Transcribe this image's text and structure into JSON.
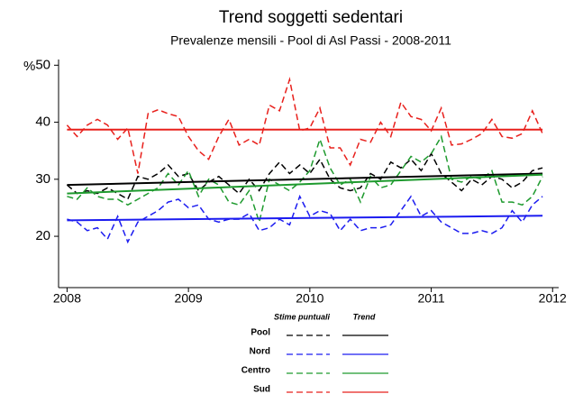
{
  "chart_data": {
    "type": "line",
    "title": "Trend soggetti sedentari",
    "subtitle": "Prevalenze mensili - Pool di Asl Passi - 2008-2011",
    "y_label": "%",
    "legend_columns": [
      "Stime puntuali",
      "Trend"
    ],
    "x": [
      2008,
      2008.083,
      2008.167,
      2008.25,
      2008.333,
      2008.417,
      2008.5,
      2008.583,
      2008.667,
      2008.75,
      2008.833,
      2008.917,
      2009,
      2009.083,
      2009.167,
      2009.25,
      2009.333,
      2009.417,
      2009.5,
      2009.583,
      2009.667,
      2009.75,
      2009.833,
      2009.917,
      2010,
      2010.083,
      2010.167,
      2010.25,
      2010.333,
      2010.417,
      2010.5,
      2010.583,
      2010.667,
      2010.75,
      2010.833,
      2010.917,
      2011,
      2011.083,
      2011.167,
      2011.25,
      2011.333,
      2011.417,
      2011.5,
      2011.583,
      2011.667,
      2011.75,
      2011.833,
      2011.917
    ],
    "trend_x": [
      2008,
      2011.917
    ],
    "xlim": [
      2007.93,
      2012.05
    ],
    "xticks": [
      2008,
      2009,
      2010,
      2011,
      2012
    ],
    "ylim": [
      11,
      51
    ],
    "yticks": [
      20,
      30,
      40,
      50
    ],
    "series": [
      {
        "name": "Pool",
        "color": "#000000",
        "trend": [
          29,
          31
        ],
        "values": [
          29,
          27.5,
          28,
          27.5,
          28.5,
          27.5,
          26.5,
          30.5,
          30,
          31,
          32.5,
          30.5,
          31,
          28,
          29.5,
          30.5,
          29,
          27.5,
          30,
          28,
          31,
          33,
          31,
          32.5,
          31,
          33.5,
          30,
          28.5,
          28,
          28.5,
          31,
          30,
          33,
          32,
          33.5,
          31.5,
          34.5,
          31,
          29.5,
          28,
          30,
          29,
          30.5,
          30,
          28.5,
          29.5,
          31.5,
          32
        ]
      },
      {
        "name": "Nord",
        "color": "#1c1cf0",
        "trend": [
          22.8,
          23.6
        ],
        "values": [
          23,
          22.5,
          21,
          21.5,
          19.5,
          23.5,
          19,
          22.5,
          23.5,
          24.5,
          26,
          26.5,
          25,
          25.5,
          23,
          22.5,
          23,
          23,
          24,
          21,
          21.5,
          23,
          22,
          27,
          23.5,
          24.5,
          24,
          21,
          23,
          21,
          21.5,
          21.5,
          22,
          24.5,
          27,
          23.5,
          24.5,
          22.5,
          21.5,
          20.5,
          20.5,
          21,
          20.5,
          21.5,
          24.5,
          22.5,
          25.5,
          27
        ]
      },
      {
        "name": "Centro",
        "color": "#1e9a2e",
        "trend": [
          27.5,
          30.8
        ],
        "values": [
          27,
          26.5,
          28.5,
          27,
          26.5,
          26.5,
          25.5,
          26.5,
          27.5,
          28.5,
          31,
          29,
          31.5,
          27,
          30,
          29,
          26,
          25.5,
          28,
          22.5,
          30,
          29,
          28,
          29.5,
          31.5,
          37,
          32,
          29,
          30,
          26,
          30.5,
          28.5,
          29,
          31.5,
          34,
          33,
          34.5,
          37.5,
          30,
          29.5,
          30.5,
          30,
          31.5,
          26,
          26,
          25.5,
          27,
          30.5
        ]
      },
      {
        "name": "Sud",
        "color": "#e8201c",
        "trend": [
          38.7,
          38.7
        ],
        "values": [
          39.5,
          37.5,
          39.5,
          40.5,
          39.5,
          37,
          39,
          31,
          41.5,
          42.2,
          41.5,
          41,
          37.5,
          35,
          33.5,
          37.5,
          40.5,
          36,
          37,
          36,
          43,
          42,
          47.5,
          38.5,
          39,
          42.5,
          35.5,
          35.5,
          32.5,
          37,
          36.5,
          40,
          37.5,
          43.5,
          41,
          40.5,
          38.5,
          42.5,
          36,
          36.2,
          37,
          38,
          40.5,
          37.5,
          37.2,
          38,
          42,
          38
        ]
      }
    ]
  }
}
